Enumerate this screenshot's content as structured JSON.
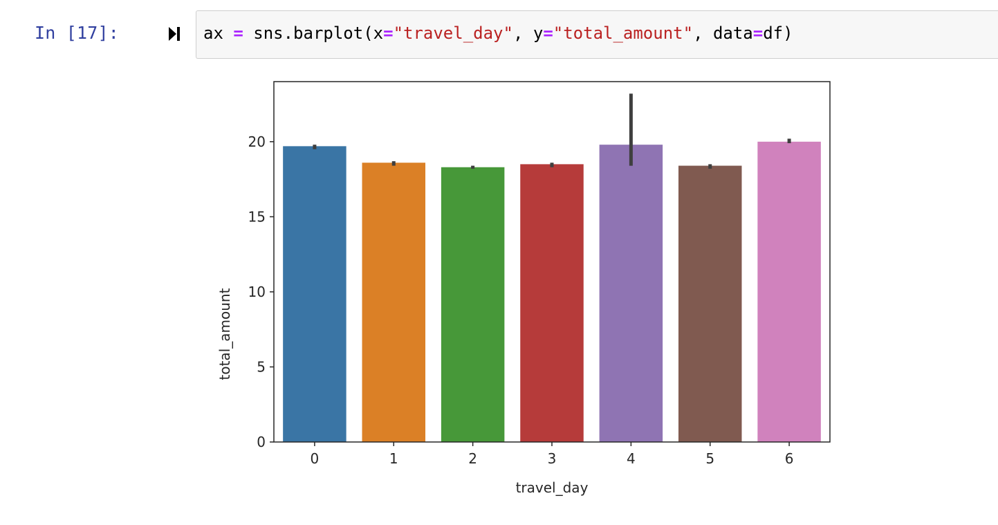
{
  "cell": {
    "prompt": "In [17]:",
    "run_icon": "run-cell-icon",
    "code": {
      "var": "ax ",
      "eq1": "=",
      "call": " sns.barplot(x",
      "eq2": "=",
      "arg_x": "\"travel_day\"",
      "mid1": ", y",
      "eq3": "=",
      "arg_y": "\"total_amount\"",
      "mid2": ", data",
      "eq4": "=",
      "tail": "df)"
    }
  },
  "colors": {
    "prompt": "#303f9f",
    "operator": "#aa22ff",
    "string": "#ba2121",
    "errorbar": "#3f3f3f"
  },
  "chart_data": {
    "type": "bar",
    "title": "",
    "xlabel": "travel_day",
    "ylabel": "total_amount",
    "categories": [
      "0",
      "1",
      "2",
      "3",
      "4",
      "5",
      "6"
    ],
    "values": [
      19.7,
      18.6,
      18.3,
      18.5,
      19.8,
      18.4,
      20.0
    ],
    "error_bars": [
      [
        19.5,
        19.8
      ],
      [
        18.4,
        18.7
      ],
      [
        18.2,
        18.4
      ],
      [
        18.3,
        18.6
      ],
      [
        18.4,
        23.2
      ],
      [
        18.2,
        18.5
      ],
      [
        19.9,
        20.2
      ]
    ],
    "bar_colors": [
      "#3a75a5",
      "#db8026",
      "#479839",
      "#b63b3a",
      "#8f74b3",
      "#805a50",
      "#d082bd"
    ],
    "ylim": [
      0,
      24
    ],
    "yticks": [
      0,
      5,
      10,
      15,
      20
    ],
    "grid": false
  }
}
